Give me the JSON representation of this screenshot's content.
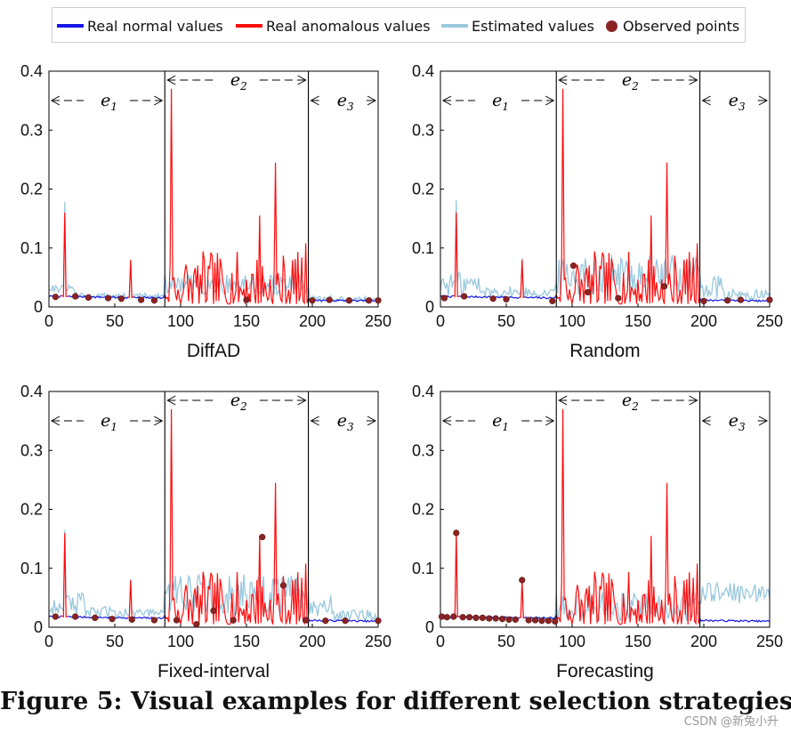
{
  "legend": {
    "items": [
      {
        "label": "Real normal values",
        "color": "#1515e8",
        "kind": "line"
      },
      {
        "label": "Real anomalous values",
        "color": "#ff0d0d",
        "kind": "line"
      },
      {
        "label": "Estimated values",
        "color": "#99c8de",
        "kind": "line"
      },
      {
        "label": "Observed points",
        "color": "#8b2323",
        "kind": "dot"
      }
    ]
  },
  "chart_data": [
    {
      "type": "line",
      "title": "DiffAD",
      "xlim": [
        0,
        250
      ],
      "ylim": [
        0,
        0.4
      ],
      "xticks": [
        0,
        50,
        100,
        150,
        200,
        250
      ],
      "yticks": [
        0,
        0.1,
        0.2,
        0.3,
        0.4
      ],
      "segments": [
        {
          "label": "e1",
          "start": 0,
          "end": 88
        },
        {
          "label": "e2",
          "start": 88,
          "end": 197
        },
        {
          "label": "e3",
          "start": 197,
          "end": 250
        }
      ],
      "anomaly_spikes": [
        [
          12,
          0.16
        ],
        [
          62,
          0.08
        ],
        [
          93,
          0.37
        ],
        [
          160,
          0.155
        ],
        [
          172,
          0.245
        ],
        [
          195,
          0.108
        ]
      ],
      "observed_points": [
        [
          5,
          0.017
        ],
        [
          20,
          0.018
        ],
        [
          30,
          0.016
        ],
        [
          45,
          0.015
        ],
        [
          55,
          0.014
        ],
        [
          70,
          0.012
        ],
        [
          80,
          0.011
        ],
        [
          150,
          0.012
        ],
        [
          200,
          0.011
        ],
        [
          213,
          0.012
        ],
        [
          228,
          0.011
        ],
        [
          243,
          0.011
        ],
        [
          250,
          0.011
        ]
      ],
      "estimated_level": "low"
    },
    {
      "type": "line",
      "title": "Random",
      "xlim": [
        0,
        250
      ],
      "ylim": [
        0,
        0.4
      ],
      "xticks": [
        0,
        50,
        100,
        150,
        200,
        250
      ],
      "yticks": [
        0,
        0.1,
        0.2,
        0.3,
        0.4
      ],
      "segments": [
        {
          "label": "e1",
          "start": 0,
          "end": 88
        },
        {
          "label": "e2",
          "start": 88,
          "end": 197
        },
        {
          "label": "e3",
          "start": 197,
          "end": 250
        }
      ],
      "anomaly_spikes": [
        [
          12,
          0.16
        ],
        [
          62,
          0.08
        ],
        [
          93,
          0.37
        ],
        [
          160,
          0.155
        ],
        [
          172,
          0.245
        ],
        [
          195,
          0.108
        ]
      ],
      "observed_points": [
        [
          3,
          0.015
        ],
        [
          18,
          0.018
        ],
        [
          40,
          0.014
        ],
        [
          50,
          0.013
        ],
        [
          85,
          0.01
        ],
        [
          101,
          0.07
        ],
        [
          112,
          0.025
        ],
        [
          135,
          0.015
        ],
        [
          170,
          0.035
        ],
        [
          200,
          0.01
        ],
        [
          218,
          0.011
        ],
        [
          228,
          0.012
        ],
        [
          250,
          0.012
        ]
      ],
      "estimated_level": "medium"
    },
    {
      "type": "line",
      "title": "Fixed-interval",
      "xlim": [
        0,
        250
      ],
      "ylim": [
        0,
        0.4
      ],
      "xticks": [
        0,
        50,
        100,
        150,
        200,
        250
      ],
      "yticks": [
        0,
        0.1,
        0.2,
        0.3,
        0.4
      ],
      "segments": [
        {
          "label": "e1",
          "start": 0,
          "end": 88
        },
        {
          "label": "e2",
          "start": 88,
          "end": 197
        },
        {
          "label": "e3",
          "start": 197,
          "end": 250
        }
      ],
      "anomaly_spikes": [
        [
          12,
          0.16
        ],
        [
          62,
          0.08
        ],
        [
          93,
          0.37
        ],
        [
          160,
          0.155
        ],
        [
          172,
          0.245
        ],
        [
          195,
          0.108
        ]
      ],
      "observed_points": [
        [
          5,
          0.018
        ],
        [
          20,
          0.018
        ],
        [
          35,
          0.016
        ],
        [
          48,
          0.014
        ],
        [
          63,
          0.013
        ],
        [
          80,
          0.012
        ],
        [
          97,
          0.012
        ],
        [
          112,
          0.005
        ],
        [
          125,
          0.028
        ],
        [
          140,
          0.012
        ],
        [
          162,
          0.153
        ],
        [
          178,
          0.071
        ],
        [
          195,
          0.012
        ],
        [
          210,
          0.011
        ],
        [
          225,
          0.011
        ],
        [
          250,
          0.011
        ]
      ],
      "estimated_level": "medium"
    },
    {
      "type": "line",
      "title": "Forecasting",
      "xlim": [
        0,
        250
      ],
      "ylim": [
        0,
        0.4
      ],
      "xticks": [
        0,
        50,
        100,
        150,
        200,
        250
      ],
      "yticks": [
        0,
        0.1,
        0.2,
        0.3,
        0.4
      ],
      "segments": [
        {
          "label": "e1",
          "start": 0,
          "end": 88
        },
        {
          "label": "e2",
          "start": 88,
          "end": 197
        },
        {
          "label": "e3",
          "start": 197,
          "end": 250
        }
      ],
      "anomaly_spikes": [
        [
          12,
          0.16
        ],
        [
          62,
          0.08
        ],
        [
          93,
          0.37
        ],
        [
          160,
          0.155
        ],
        [
          172,
          0.245
        ],
        [
          195,
          0.108
        ]
      ],
      "observed_points": [
        [
          1,
          0.018
        ],
        [
          5,
          0.017
        ],
        [
          10,
          0.018
        ],
        [
          12,
          0.16
        ],
        [
          17,
          0.017
        ],
        [
          22,
          0.017
        ],
        [
          27,
          0.016
        ],
        [
          32,
          0.016
        ],
        [
          37,
          0.015
        ],
        [
          42,
          0.015
        ],
        [
          47,
          0.014
        ],
        [
          52,
          0.013
        ],
        [
          57,
          0.013
        ],
        [
          62,
          0.08
        ],
        [
          67,
          0.012
        ],
        [
          72,
          0.012
        ],
        [
          77,
          0.011
        ],
        [
          82,
          0.011
        ],
        [
          87,
          0.01
        ]
      ],
      "estimated_level": "high_e3"
    }
  ],
  "caption": "Figure 5: Visual examples for different selection strategies.",
  "watermark": "CSDN @新兔小升"
}
